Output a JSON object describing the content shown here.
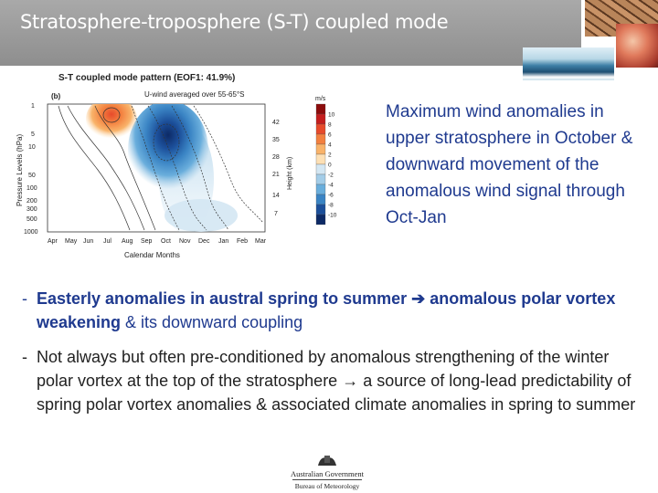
{
  "slide": {
    "title": "Stratosphere-troposphere (S-T) coupled mode"
  },
  "figure": {
    "title": "S-T coupled mode pattern (EOF1: 41.9%)",
    "panel_label": "(b)",
    "subtitle": "U-wind averaged over 55-65°S",
    "ylabel_left": "Pressure Levels (hPa)",
    "ylabel_right": "Height (km)",
    "xlabel": "Calendar Months",
    "pressure_ticks": [
      "1",
      "5",
      "10",
      "50",
      "100",
      "200",
      "300",
      "500",
      "1000"
    ],
    "height_ticks": [
      "42",
      "35",
      "28",
      "21",
      "14",
      "7"
    ],
    "months": [
      "Apr",
      "May",
      "Jun",
      "Jul",
      "Aug",
      "Sep",
      "Oct",
      "Nov",
      "Dec",
      "Jan",
      "Feb",
      "Mar"
    ],
    "colorbar": {
      "unit": "m/s",
      "levels": [
        "10",
        "8",
        "6",
        "4",
        "2",
        "0",
        "-2",
        "-4",
        "-6",
        "-8",
        "-10"
      ],
      "colors": [
        "#8c0c0c",
        "#c41e1e",
        "#e74a2b",
        "#f3803f",
        "#f9b36a",
        "#fde0b5",
        "#d4e7f3",
        "#a4cde8",
        "#6aaedc",
        "#3a84c4",
        "#1c4f9a",
        "#0d2a66"
      ]
    }
  },
  "caption": "Maximum wind anomalies in upper stratosphere in October & downward movement of the anomalous wind signal through Oct-Jan",
  "bullets": {
    "b1_part1": "Easterly anomalies in austral spring to summer",
    "b1_arrow": "➔",
    "b1_part2": " anomalous polar",
    "b1_part3": "vortex weakening",
    "b1_part4": " & its downward coupling",
    "b2_part1": "Not always but often pre-conditioned by anomalous strengthening of the winter polar vortex at the top of the stratosphere",
    "b2_arrow": "→",
    "b2_part2": " a source of long-lead predictability of spring polar vortex anomalies & associated climate anomalies in spring to summer"
  },
  "logo": {
    "government": "Australian Government",
    "bureau": "Bureau of Meteorology"
  }
}
